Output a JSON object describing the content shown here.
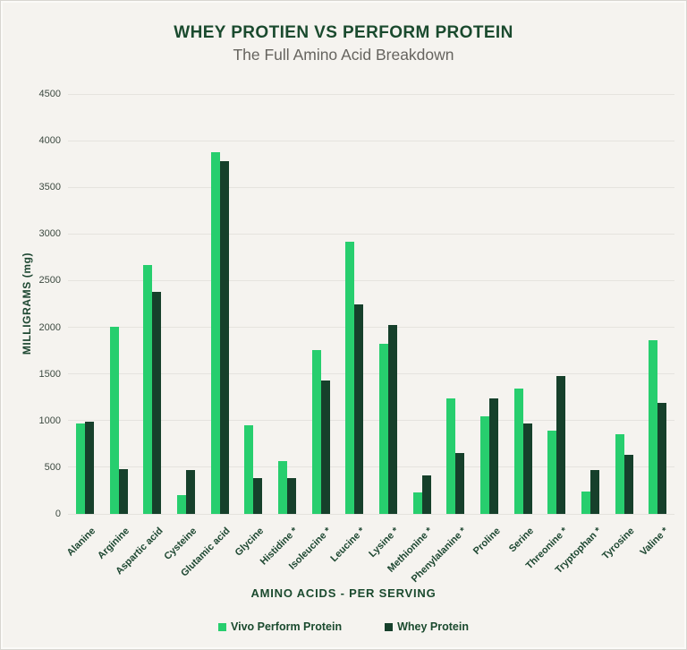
{
  "chart_data": {
    "type": "bar",
    "title": "WHEY PROTIEN VS PERFORM PROTEIN",
    "subtitle": "The Full Amino Acid Breakdown",
    "xlabel": "AMINO ACIDS - PER SERVING",
    "ylabel": "MILLIGRAMS (mg)",
    "ylim": [
      0,
      4500
    ],
    "ytick_step": 500,
    "grid": true,
    "legend_position": "bottom",
    "categories": [
      "Alanine",
      "Arginine",
      "Aspartic acid",
      "Cysteine",
      "Glutamic acid",
      "Glycine",
      "Histidine *",
      "Isoleucine *",
      "Leucine *",
      "Lysine *",
      "Methionine *",
      "Phenylalanine *",
      "Proline",
      "Serine",
      "Threonine *",
      "Tryptophan *",
      "Tyrosine",
      "Valine *"
    ],
    "series": [
      {
        "name": "Vivo Perform Protein",
        "color": "#27CE6E",
        "values": [
          970,
          2010,
          2670,
          200,
          3880,
          950,
          570,
          1760,
          2920,
          1820,
          230,
          1240,
          1050,
          1340,
          890,
          240,
          850,
          1860
        ]
      },
      {
        "name": "Whey Protein",
        "color": "#16402B",
        "values": [
          990,
          480,
          2380,
          475,
          3780,
          380,
          385,
          1430,
          2250,
          2020,
          410,
          650,
          1240,
          970,
          1480,
          475,
          630,
          1190
        ]
      }
    ]
  },
  "colors": {
    "background": "#F5F3EF",
    "title_text": "#1A4A2E",
    "subtitle_text": "#66645F",
    "gridline": "#E5E3DE",
    "ytick_text": "#3D4A41",
    "xlabel_text": "#1D4731"
  }
}
